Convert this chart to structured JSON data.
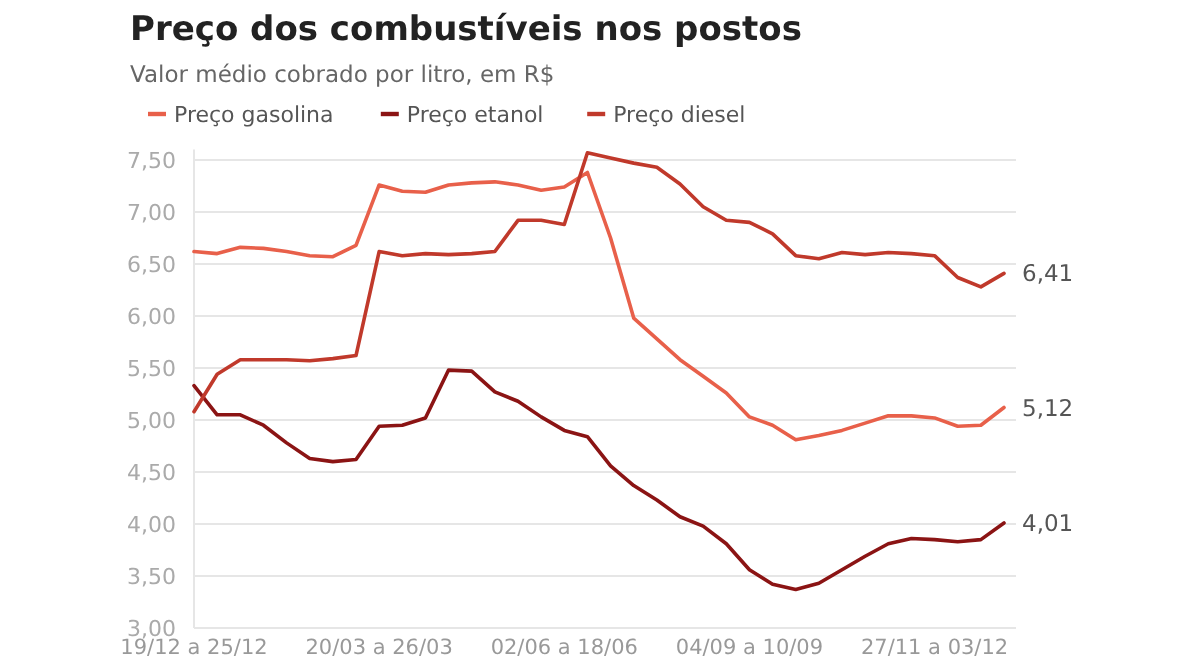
{
  "chart_data": {
    "type": "line",
    "title": "Preço dos combustíveis nos postos",
    "subtitle": "Valor médio cobrado por litro, em R$",
    "categories": [
      "19/12 a 25/12",
      null,
      null,
      null,
      null,
      null,
      null,
      null,
      "20/03 a 26/03",
      null,
      null,
      null,
      null,
      null,
      null,
      null,
      "02/06 a 18/06",
      null,
      null,
      null,
      null,
      null,
      null,
      null,
      "04/09 a 10/09",
      null,
      null,
      null,
      null,
      null,
      null,
      null,
      "27/11 a 03/12",
      null,
      null,
      null
    ],
    "series": [
      {
        "name": "Preço gasolina",
        "color": "#e8604a",
        "values": [
          6.62,
          6.6,
          6.66,
          6.65,
          6.62,
          6.58,
          6.57,
          6.68,
          7.26,
          7.2,
          7.19,
          7.26,
          7.28,
          7.29,
          7.26,
          7.21,
          7.24,
          7.38,
          6.75,
          5.98,
          5.78,
          5.58,
          5.42,
          5.26,
          5.03,
          4.95,
          4.81,
          4.85,
          4.9,
          4.97,
          5.04,
          5.04,
          5.02,
          4.94,
          4.95,
          5.12
        ],
        "value_labels": [
          null,
          null,
          null,
          null,
          null,
          null,
          null,
          null,
          null,
          null,
          null,
          null,
          null,
          null,
          null,
          null,
          null,
          null,
          null,
          null,
          null,
          null,
          null,
          null,
          null,
          null,
          null,
          null,
          null,
          null,
          null,
          null,
          null,
          null,
          null,
          "5,12"
        ]
      },
      {
        "name": "Preço etanol",
        "color": "#8b1414",
        "values": [
          5.33,
          5.05,
          5.05,
          4.95,
          4.78,
          4.63,
          4.6,
          4.62,
          4.94,
          4.95,
          5.02,
          5.48,
          5.47,
          5.27,
          5.18,
          5.03,
          4.9,
          4.84,
          4.56,
          4.37,
          4.23,
          4.07,
          3.98,
          3.81,
          3.56,
          3.42,
          3.37,
          3.43,
          3.56,
          3.69,
          3.81,
          3.86,
          3.85,
          3.83,
          3.85,
          4.01
        ],
        "value_labels": [
          null,
          null,
          null,
          null,
          null,
          null,
          null,
          null,
          null,
          null,
          null,
          null,
          null,
          null,
          null,
          null,
          null,
          null,
          null,
          null,
          null,
          null,
          null,
          null,
          null,
          null,
          null,
          null,
          null,
          null,
          null,
          null,
          null,
          null,
          null,
          "4,01"
        ]
      },
      {
        "name": "Preço diesel",
        "color": "#c0392b",
        "values": [
          5.08,
          5.44,
          5.58,
          5.58,
          5.58,
          5.57,
          5.59,
          5.62,
          6.62,
          6.58,
          6.6,
          6.59,
          6.6,
          6.62,
          6.92,
          6.92,
          6.88,
          7.57,
          7.52,
          7.47,
          7.43,
          7.27,
          7.05,
          6.92,
          6.9,
          6.79,
          6.58,
          6.55,
          6.61,
          6.59,
          6.61,
          6.6,
          6.58,
          6.37,
          6.28,
          6.41
        ],
        "value_labels": [
          null,
          null,
          null,
          null,
          null,
          null,
          null,
          null,
          null,
          null,
          null,
          null,
          null,
          null,
          null,
          null,
          null,
          null,
          null,
          null,
          null,
          null,
          null,
          null,
          null,
          null,
          null,
          null,
          null,
          null,
          null,
          null,
          null,
          null,
          null,
          "6,41"
        ]
      }
    ],
    "ylim": [
      3,
      7.6
    ],
    "yticks": [
      {
        "value": 3,
        "label": "3,00"
      },
      {
        "value": 3.5,
        "label": "3,50"
      },
      {
        "value": 4,
        "label": "4,00"
      },
      {
        "value": 4.5,
        "label": "4,50"
      },
      {
        "value": 5,
        "label": "5,00"
      },
      {
        "value": 5.5,
        "label": "5,50"
      },
      {
        "value": 6,
        "label": "6,00"
      },
      {
        "value": 6.5,
        "label": "6,50"
      },
      {
        "value": 7,
        "label": "7,00"
      },
      {
        "value": 7.5,
        "label": "7,50"
      }
    ],
    "grid": "y",
    "legend": "top left",
    "line_style": "solid"
  }
}
